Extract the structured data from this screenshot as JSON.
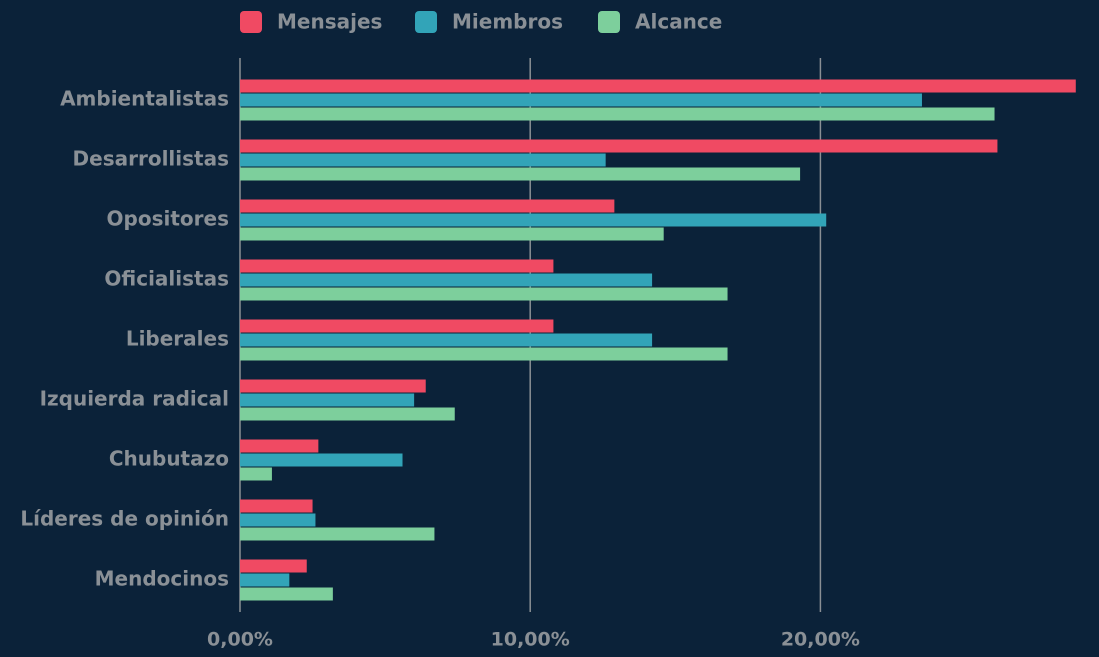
{
  "chart_data": {
    "type": "hbar",
    "categories": [
      "Ambientalistas",
      "Desarrollistas",
      "Opositores",
      "Oficialistas",
      "Liberales",
      "Izquierda radical",
      "Chubutazo",
      "Líderes de opinión",
      "Mendocinos"
    ],
    "series": [
      {
        "name": "Mensajes",
        "color": "#f04a63",
        "values": [
          28.8,
          26.1,
          12.9,
          10.8,
          10.8,
          6.4,
          2.7,
          2.5,
          2.3
        ]
      },
      {
        "name": "Miembros",
        "color": "#32a4b8",
        "values": [
          23.5,
          12.6,
          20.2,
          14.2,
          14.2,
          6.0,
          5.6,
          2.6,
          1.7
        ]
      },
      {
        "name": "Alcance",
        "color": "#7dcf9c",
        "values": [
          26.0,
          19.3,
          14.6,
          16.8,
          16.8,
          7.4,
          1.1,
          6.7,
          3.2
        ]
      }
    ],
    "xlim": [
      0,
      29.6
    ],
    "xticks": [
      {
        "value": 0,
        "label": "0,00%"
      },
      {
        "value": 10,
        "label": "10,00%"
      },
      {
        "value": 20,
        "label": "20,00%"
      }
    ],
    "grid": true
  }
}
